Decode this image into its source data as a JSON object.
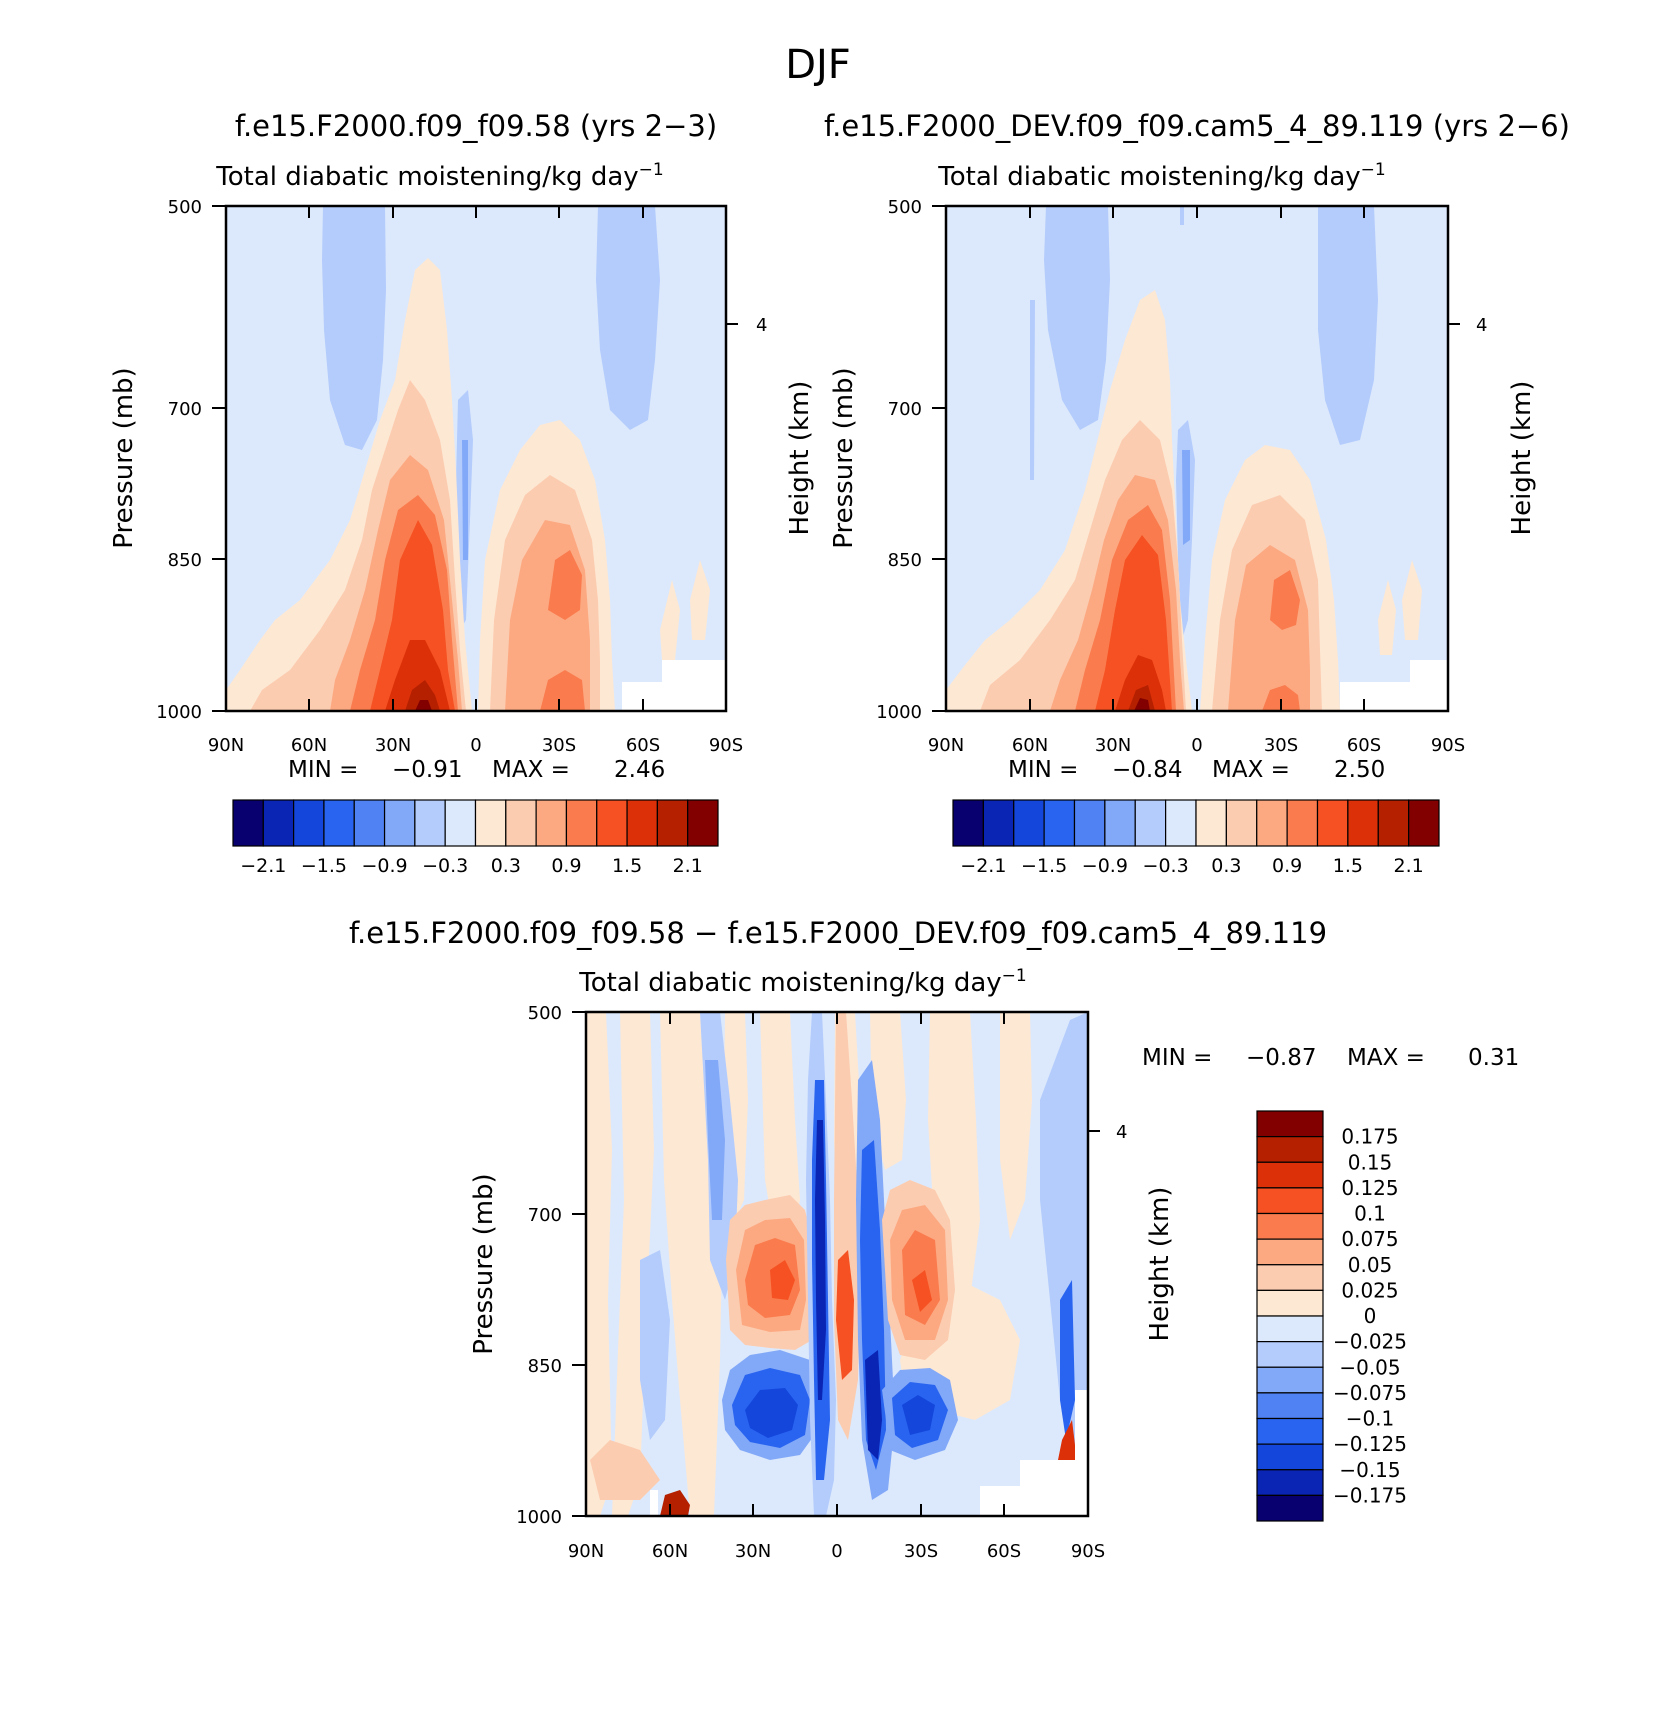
{
  "figure_title": "DJF",
  "chart_data": [
    {
      "type": "heatmap",
      "run_title": "f.e15.F2000.f09_f09.58 (yrs 2-3)",
      "title": "Total diabatic moistening",
      "units_base": "/kg day",
      "units_exp": "-1",
      "ylabel": "Pressure (mb)",
      "ylabel_right": "Height (km)",
      "x_ticks": [
        "90N",
        "60N",
        "30N",
        "0",
        "30S",
        "60S",
        "90S"
      ],
      "y_ticks": [
        "500",
        "700",
        "850",
        "1000"
      ],
      "right_ticks": [
        "4"
      ],
      "ylim": [
        1000,
        500
      ],
      "min_label": "MIN =",
      "min": "-0.91",
      "max_label": "MAX =",
      "max": "2.46",
      "colorbar_labels": [
        "-2.1",
        "-1.5",
        "-0.9",
        "-0.3",
        "0.3",
        "0.9",
        "1.5",
        "2.1"
      ],
      "colors": [
        "#08006e",
        "#0a24b4",
        "#1446dc",
        "#2864f0",
        "#5082f4",
        "#82a8f8",
        "#b4ccfc",
        "#dce9fc",
        "#fde8d4",
        "#fcccb0",
        "#fca982",
        "#fa7c4e",
        "#f55122",
        "#dc3008",
        "#b42000",
        "#820000"
      ]
    },
    {
      "type": "heatmap",
      "run_title": "f.e15.F2000_DEV.f09_f09.cam5_4_89.119 (yrs 2-6)",
      "title": "Total diabatic moistening",
      "units_base": "/kg day",
      "units_exp": "-1",
      "ylabel": "Pressure (mb)",
      "ylabel_right": "Height (km)",
      "x_ticks": [
        "90N",
        "60N",
        "30N",
        "0",
        "30S",
        "60S",
        "90S"
      ],
      "y_ticks": [
        "500",
        "700",
        "850",
        "1000"
      ],
      "right_ticks": [
        "4"
      ],
      "ylim": [
        1000,
        500
      ],
      "min_label": "MIN =",
      "min": "-0.84",
      "max_label": "MAX =",
      "max": "2.50",
      "colorbar_labels": [
        "-2.1",
        "-1.5",
        "-0.9",
        "-0.3",
        "0.3",
        "0.9",
        "1.5",
        "2.1"
      ],
      "colors": [
        "#08006e",
        "#0a24b4",
        "#1446dc",
        "#2864f0",
        "#5082f4",
        "#82a8f8",
        "#b4ccfc",
        "#dce9fc",
        "#fde8d4",
        "#fcccb0",
        "#fca982",
        "#fa7c4e",
        "#f55122",
        "#dc3008",
        "#b42000",
        "#820000"
      ]
    },
    {
      "type": "heatmap",
      "run_title": "f.e15.F2000.f09_f09.58 - f.e15.F2000_DEV.f09_f09.cam5_4_89.119",
      "title": "Total diabatic moistening",
      "units_base": "/kg day",
      "units_exp": "-1",
      "ylabel": "Pressure (mb)",
      "ylabel_right": "Height (km)",
      "x_ticks": [
        "90N",
        "60N",
        "30N",
        "0",
        "30S",
        "60S",
        "90S"
      ],
      "y_ticks": [
        "500",
        "700",
        "850",
        "1000"
      ],
      "right_ticks": [
        "4"
      ],
      "ylim": [
        1000,
        500
      ],
      "min_label": "MIN =",
      "min": "-0.87",
      "max_label": "MAX =",
      "max": "0.31",
      "colorbar_labels": [
        "0.175",
        "0.15",
        "0.125",
        "0.1",
        "0.075",
        "0.05",
        "0.025",
        "0",
        "-0.025",
        "-0.05",
        "-0.075",
        "-0.1",
        "-0.125",
        "-0.15",
        "-0.175"
      ],
      "colors": [
        "#820000",
        "#b42000",
        "#dc3008",
        "#f55122",
        "#fa7c4e",
        "#fca982",
        "#fcccb0",
        "#fde8d4",
        "#dce9fc",
        "#b4ccfc",
        "#82a8f8",
        "#5082f4",
        "#2864f0",
        "#1446dc",
        "#0a24b4",
        "#08006e"
      ]
    }
  ]
}
